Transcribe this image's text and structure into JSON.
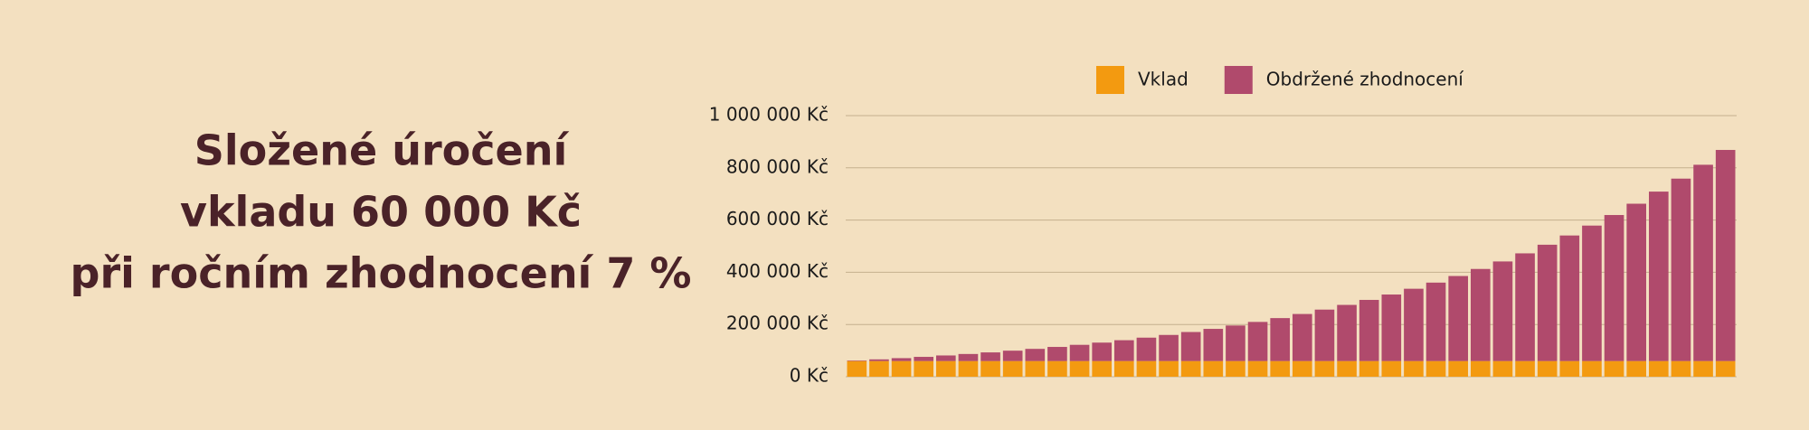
{
  "chart_data": {
    "type": "stacked-bar",
    "title": [
      "Složené úročení",
      "vkladu 60 000 Kč",
      "při ročním zhodnocení 7 %"
    ],
    "categories": [
      null,
      null,
      null,
      null,
      null,
      null,
      null,
      null,
      null,
      null,
      null,
      null,
      null,
      null,
      null,
      null,
      null,
      null,
      null,
      null,
      null,
      null,
      null,
      null,
      null,
      null,
      null,
      null,
      null,
      null,
      null,
      null,
      null,
      null,
      null,
      null,
      null,
      null,
      null,
      null
    ],
    "series": [
      {
        "name": "Vklad",
        "color": "#f39a10",
        "values": [
          60000,
          60000,
          60000,
          60000,
          60000,
          60000,
          60000,
          60000,
          60000,
          60000,
          60000,
          60000,
          60000,
          60000,
          60000,
          60000,
          60000,
          60000,
          60000,
          60000,
          60000,
          60000,
          60000,
          60000,
          60000,
          60000,
          60000,
          60000,
          60000,
          60000,
          60000,
          60000,
          60000,
          60000,
          60000,
          60000,
          60000,
          60000,
          60000,
          60000
        ]
      },
      {
        "name": "Obdržené zhodnocení",
        "color": "#b04a6c",
        "values": [
          2000,
          6400,
          11100,
          16000,
          21400,
          27000,
          33100,
          39700,
          46600,
          54100,
          62100,
          70600,
          79800,
          89600,
          100000,
          111200,
          123200,
          136100,
          149800,
          164500,
          180200,
          197000,
          215000,
          234200,
          254800,
          276900,
          300400,
          325700,
          352700,
          381500,
          412500,
          445500,
          480900,
          518800,
          559300,
          602600,
          649000,
          698700,
          751800,
          808600
        ]
      }
    ],
    "ylim": [
      0,
      1000000
    ],
    "yticks": [
      {
        "value": 0,
        "label": "0 Kč"
      },
      {
        "value": 200000,
        "label": "200 000 Kč"
      },
      {
        "value": 400000,
        "label": "400 000 Kč"
      },
      {
        "value": 600000,
        "label": "600 000 Kč"
      },
      {
        "value": 800000,
        "label": "800 000 Kč"
      },
      {
        "value": 1000000,
        "label": "1 000 000 Kč"
      }
    ],
    "grid": true
  }
}
